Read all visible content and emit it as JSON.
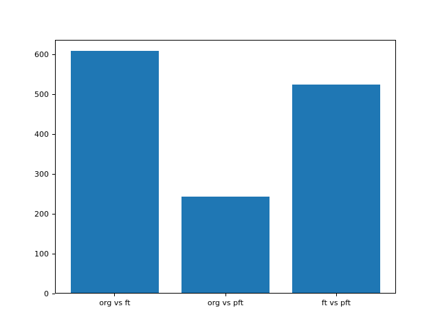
{
  "figure": {
    "background_color": "#ffffff",
    "spine_color": "#000000",
    "tick_color": "#000000"
  },
  "chart_data": {
    "type": "bar",
    "title": "",
    "xlabel": "",
    "ylabel": "",
    "categories": [
      "org vs ft",
      "org vs pft",
      "ft vs pft"
    ],
    "values": [
      611,
      243,
      525
    ],
    "bar_color": "#1f77b4",
    "bar_width_fraction": 0.8,
    "yticks": [
      0,
      100,
      200,
      300,
      400,
      500,
      600
    ],
    "ylim": [
      0,
      638
    ],
    "xlim": [
      -0.54,
      2.54
    ],
    "grid": false,
    "legend": null
  }
}
